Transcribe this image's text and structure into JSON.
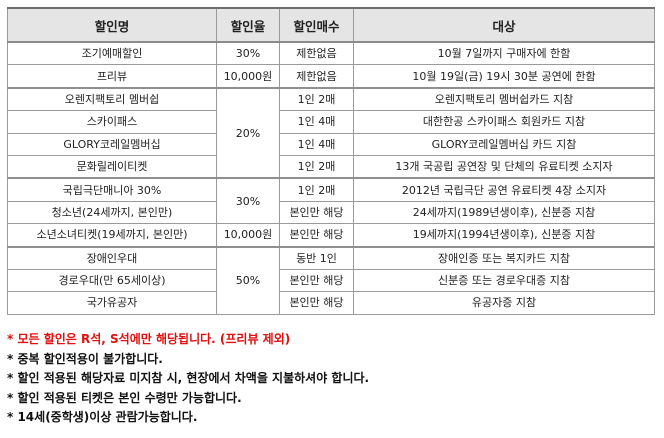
{
  "headers": [
    "할인명",
    "할인율",
    "할인매수",
    "대상"
  ],
  "rows": [
    {
      "name": "조기예매할인",
      "rate": "30%",
      "count": "제한없음",
      "target": "10월 7일까지 구매자에 한함"
    },
    {
      "name": "프리뷰",
      "rate": "10,000원",
      "count": "제한없음",
      "target": "10월 19일(금) 19시 30분 공연에 한함"
    },
    {
      "name": "오렌지팩토리 멤버쉽",
      "rate": "20%",
      "count": "1인 2매",
      "target": "오렌지팩토리 멤버쉽카드 지참"
    },
    {
      "name": "스카이패스",
      "rate": "",
      "count": "1인 4매",
      "target": "대한한공 스카이패스 회원카드 지참"
    },
    {
      "name": "GLORY코레일멤버십",
      "rate": "",
      "count": "1인 4매",
      "target": "GLORY코레일멤버십 카드 지참"
    },
    {
      "name": "문화릴레이티켓",
      "rate": "",
      "count": "1인 2매",
      "target": "13개 국공립 공연장 및 단체의 유료티켓 소지자"
    },
    {
      "name": "국립극단매니아 30%",
      "rate": "30%",
      "count": "1인 2매",
      "target": "2012년 국립극단 공연 유료티켓 4장 소지자"
    },
    {
      "name": "청소년(24세까지, 본인만)",
      "rate": "",
      "count": "본인만 해당",
      "target": "24세까지(1989년생이후), 신분증 지참"
    },
    {
      "name": "소년소녀티켓(19세까지, 본인만)",
      "rate": "10,000원",
      "count": "본인만 해당",
      "target": "19세까지(1994년생이후), 신분증 지참"
    },
    {
      "name": "장애인우대",
      "rate": "50%",
      "count": "동반 1인",
      "target": "장애인증 또는 복지카드 지참"
    },
    {
      "name": "경로우대(만 65세이상)",
      "rate": "",
      "count": "본인만 해당",
      "target": "신분증 또는 경로우대증 지참"
    },
    {
      "name": "국가유공자",
      "rate": "",
      "count": "본인만 해당",
      "target": "유공자증 지참"
    }
  ],
  "notes": [
    "* 모든 할인은 R석, S석에만 해당됩니다. (프리뷰 제외)",
    "* 중복 할인적용이 불가합니다.",
    "* 할인 적용된 해당자료 미지참 시, 현장에서 차액을 지불하셔야 합니다.",
    "* 할인 적용된 티켓은 본인 수령만 가능합니다.",
    "* 14세(중학생)이상 관람가능합니다."
  ],
  "colors": {
    "header_bg": "#e5e5e5",
    "note_red": "#e01010"
  }
}
